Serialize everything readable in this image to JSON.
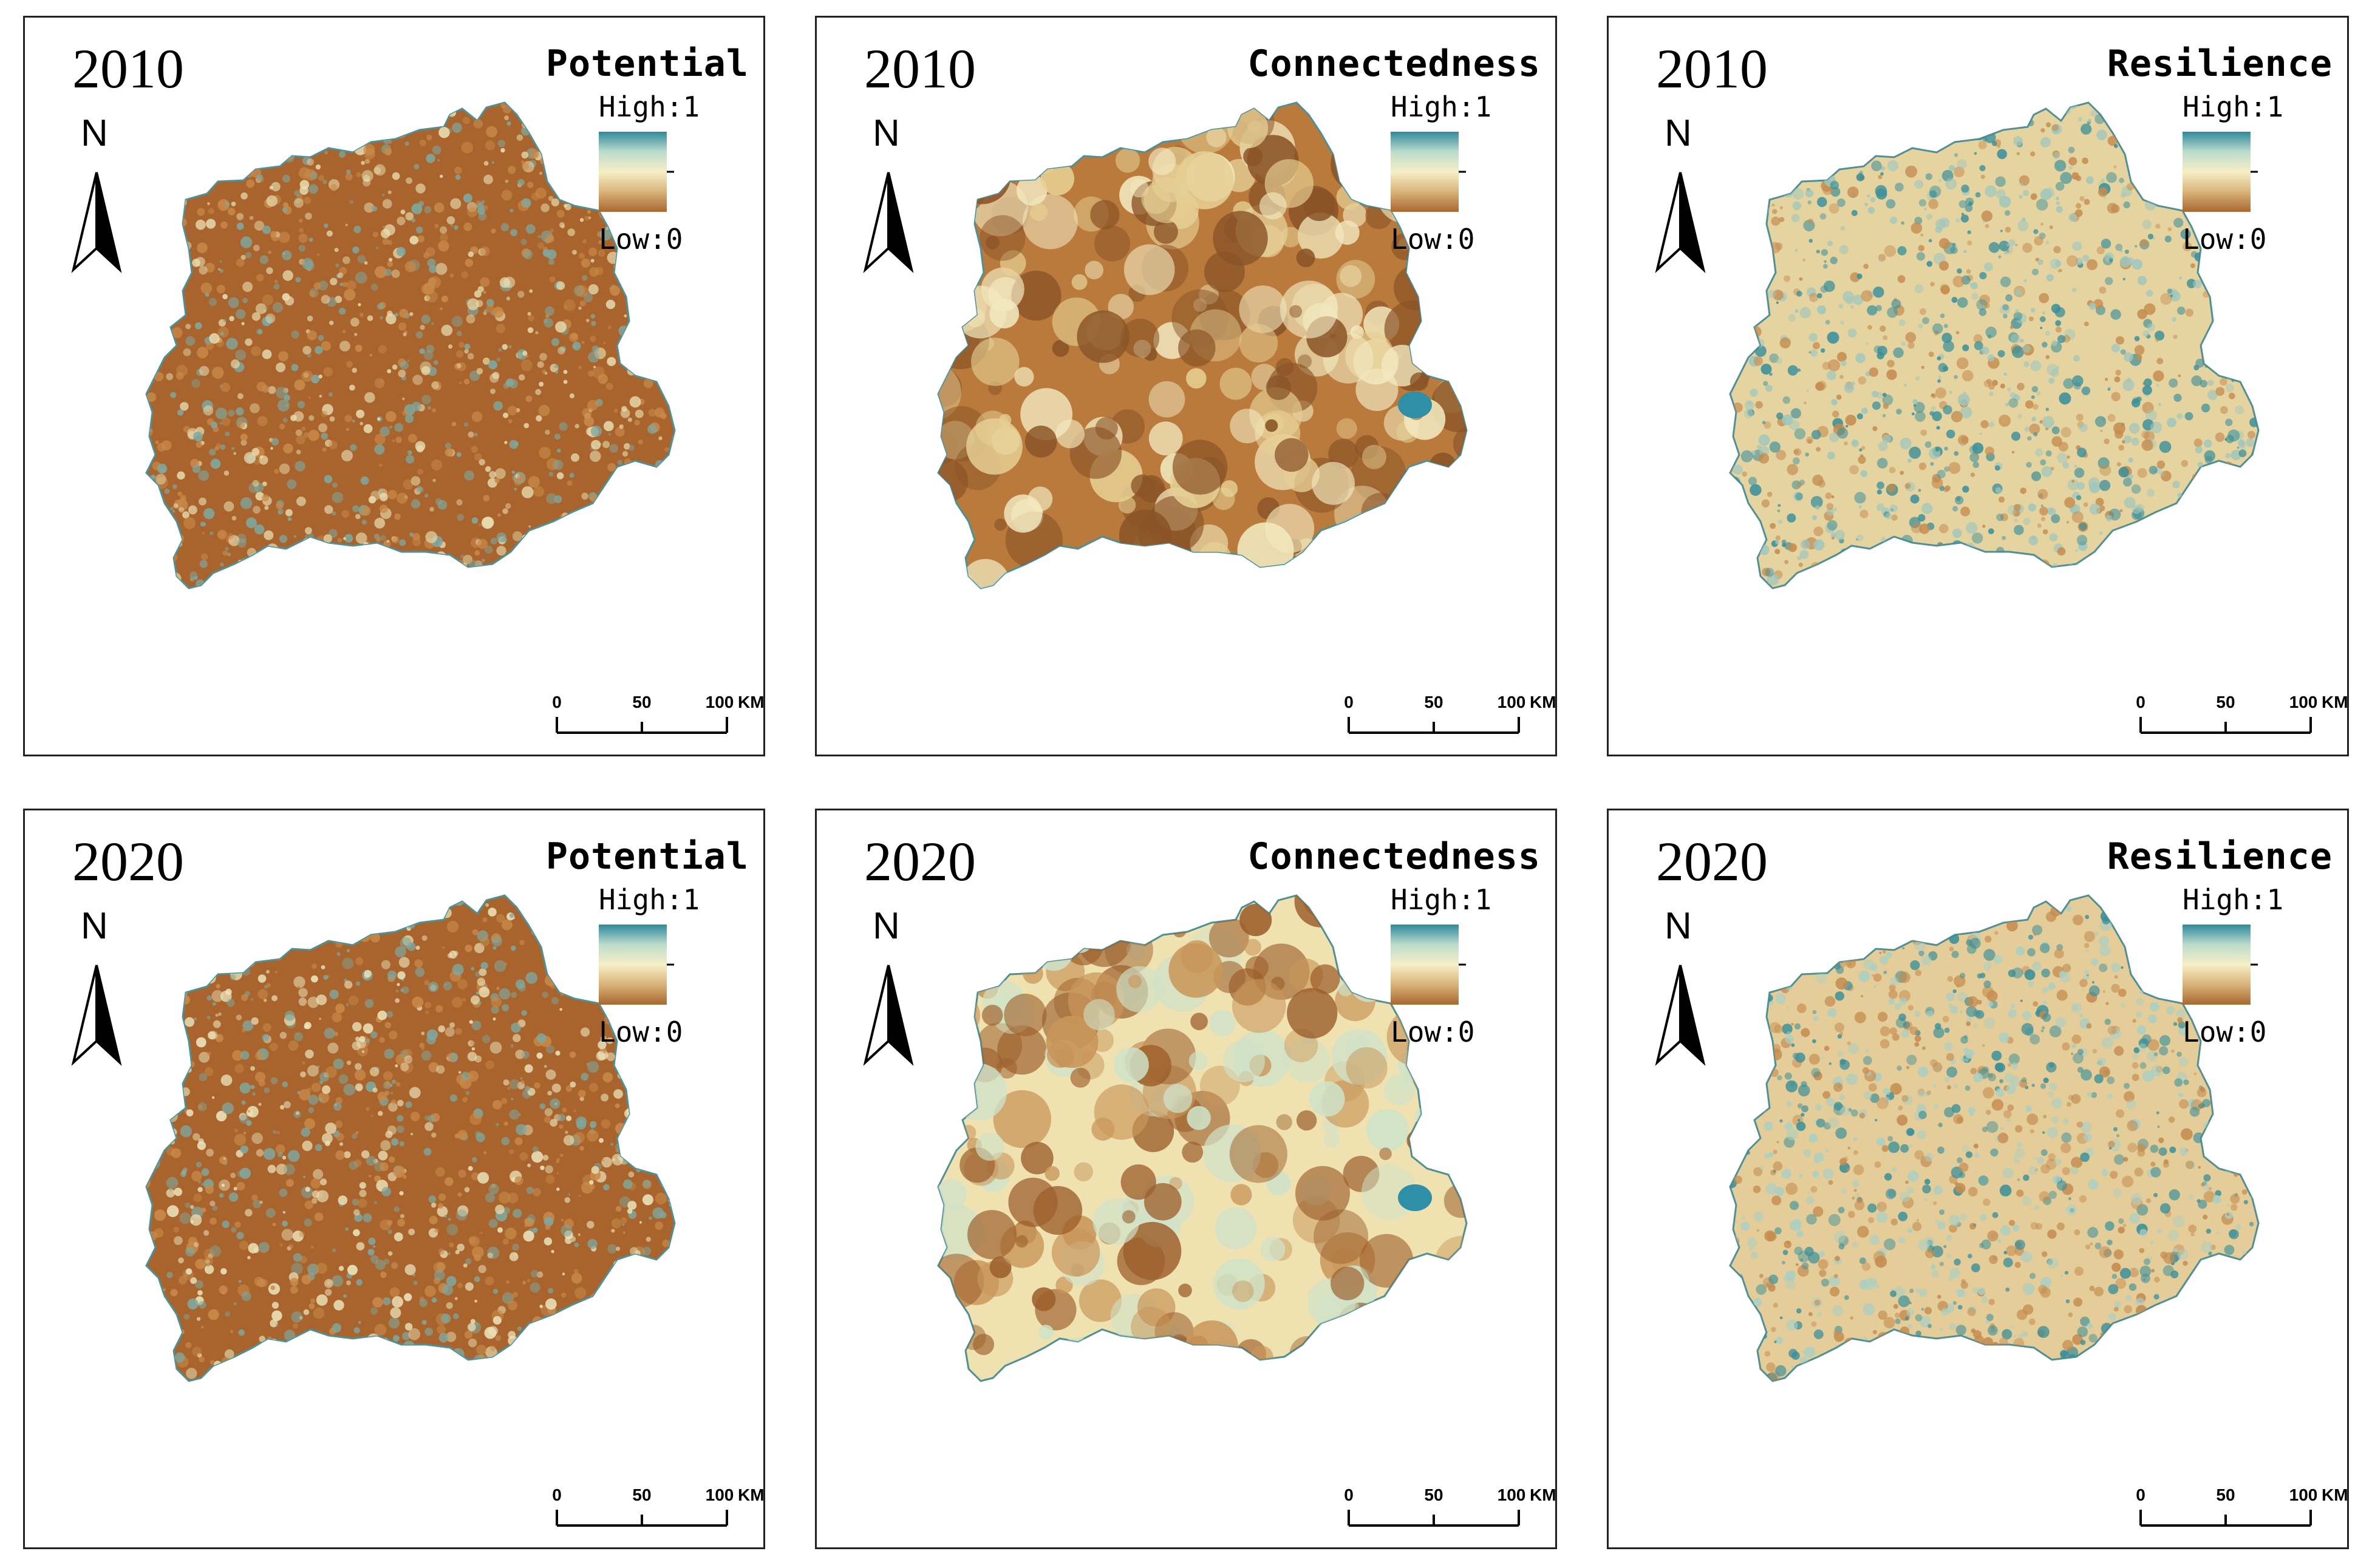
{
  "figure": {
    "panels": [
      {
        "id": "p2010-potential",
        "year": "2010",
        "title": "Potential",
        "legend_high": "High:1",
        "legend_low": "Low:0",
        "scale_labels": [
          "0",
          "50",
          "100"
        ],
        "scale_unit": "KM",
        "north": "N",
        "base_color": "#a8642c",
        "speckle_colors": [
          "#c98a4a",
          "#7fa8a0",
          "#e8ddb0"
        ]
      },
      {
        "id": "p2010-connectedness",
        "year": "2010",
        "title": "Connectedness",
        "legend_high": "High:1",
        "legend_low": "Low:0",
        "scale_labels": [
          "0",
          "50",
          "100"
        ],
        "scale_unit": "KM",
        "north": "N",
        "base_color": "#b97a3c",
        "speckle_colors": [
          "#e6cf94",
          "#f2e8bf",
          "#8a5427"
        ]
      },
      {
        "id": "p2010-resilience",
        "year": "2010",
        "title": "Resilience",
        "legend_high": "High:1",
        "legend_low": "Low:0",
        "scale_labels": [
          "0",
          "50",
          "100"
        ],
        "scale_unit": "KM",
        "north": "N",
        "base_color": "#e6d4a0",
        "speckle_colors": [
          "#c48b4f",
          "#9fc6bc",
          "#3a8f9a"
        ]
      },
      {
        "id": "p2020-potential",
        "year": "2020",
        "title": "Potential",
        "legend_high": "High:1",
        "legend_low": "Low:0",
        "scale_labels": [
          "0",
          "50",
          "100"
        ],
        "scale_unit": "KM",
        "north": "N",
        "base_color": "#a8642c",
        "speckle_colors": [
          "#c98a4a",
          "#7fa8a0",
          "#ece3bb"
        ]
      },
      {
        "id": "p2020-connectedness",
        "year": "2020",
        "title": "Connectedness",
        "legend_high": "High:1",
        "legend_low": "Low:0",
        "scale_labels": [
          "0",
          "50",
          "100"
        ],
        "scale_unit": "KM",
        "north": "N",
        "base_color": "#efe2b0",
        "speckle_colors": [
          "#c9965a",
          "#9c5f2c",
          "#cfe2c9"
        ]
      },
      {
        "id": "p2020-resilience",
        "year": "2020",
        "title": "Resilience",
        "legend_high": "High:1",
        "legend_low": "Low:0",
        "scale_labels": [
          "0",
          "50",
          "100"
        ],
        "scale_unit": "KM",
        "north": "N",
        "base_color": "#e4cd98",
        "speckle_colors": [
          "#c48b4f",
          "#a9cfc4",
          "#3a8f9a"
        ]
      }
    ],
    "ramp_colors": [
      "#2e8a9a",
      "#bcdccc",
      "#f6efc6",
      "#d9b37a",
      "#a9682f"
    ],
    "lake_color": "#2e8fa6"
  }
}
